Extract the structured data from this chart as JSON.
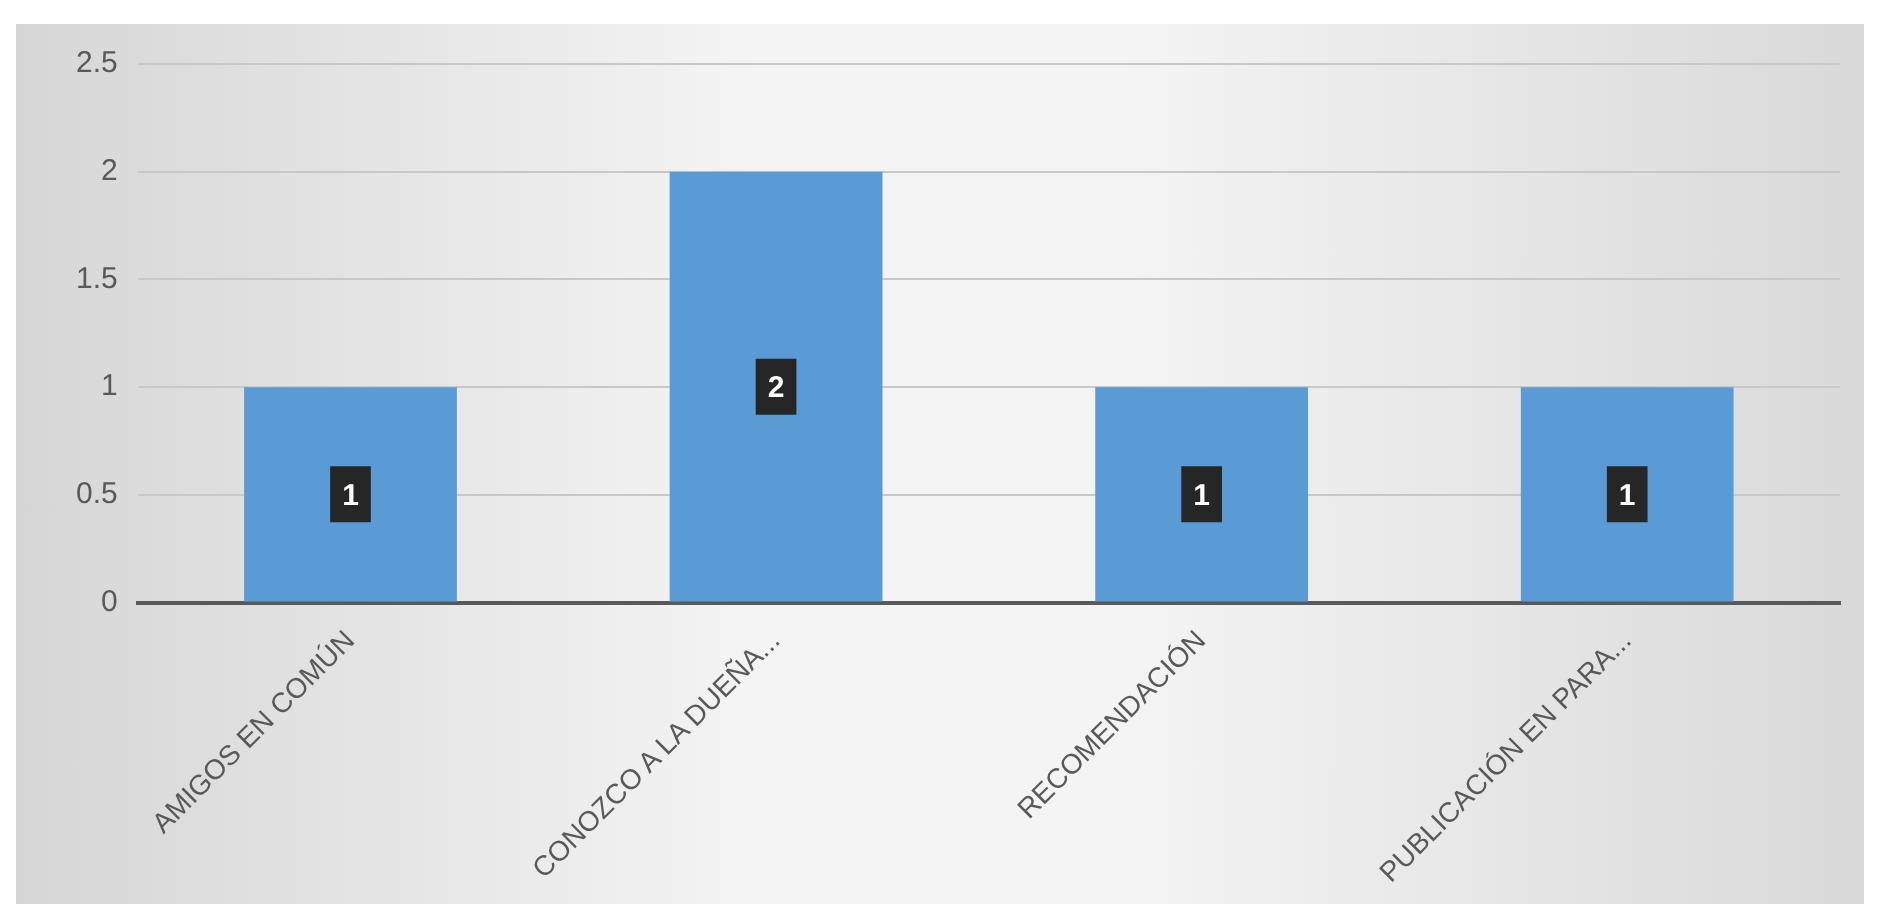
{
  "chart_data": {
    "type": "bar",
    "categories": [
      "AMIGOS EN COMÚN",
      "CONOZCO A LA DUEÑA...",
      "RECOMENDACIÓN",
      "PUBLICACIÓN EN PARA..."
    ],
    "values": [
      1,
      2,
      1,
      1
    ],
    "color": "#5b9bd5",
    "ylim": [
      0,
      2.5
    ],
    "yticks": [
      0,
      0.5,
      1,
      1.5,
      2,
      2.5
    ],
    "grid": "y",
    "data_labels": true
  }
}
